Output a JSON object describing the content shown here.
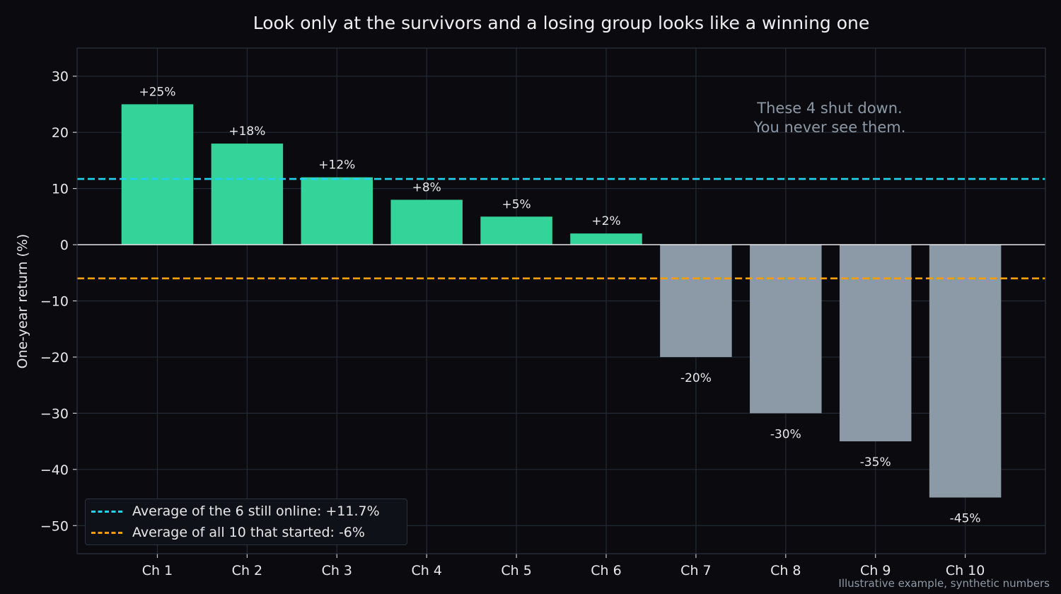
{
  "title": "Look only at the survivors and a losing group looks like a winning one",
  "footnote": "Illustrative example, synthetic numbers",
  "annotation": {
    "line1": "These 4 shut down.",
    "line2": "You never see them."
  },
  "legend": {
    "survivors_label": "Average of the 6 still online: +11.7%",
    "all_label": "Average of all 10 that started: -6%"
  },
  "colors": {
    "background": "#0b0b0f",
    "survivor_bar": "#34d399",
    "closed_bar": "#8c99a6",
    "survivor_avg_line": "#22d3ee",
    "all_avg_line": "#f59e0b",
    "grid": "#222a35"
  },
  "chart_data": {
    "type": "bar",
    "title": "Look only at the survivors and a losing group looks like a winning one",
    "xlabel": "",
    "ylabel": "One-year return (%)",
    "ylim": [
      -55,
      35
    ],
    "yticks": [
      30,
      20,
      10,
      0,
      -10,
      -20,
      -30,
      -40,
      -50
    ],
    "ytick_labels": [
      "30",
      "20",
      "10",
      "0",
      "−10",
      "−20",
      "−30",
      "−40",
      "−50"
    ],
    "grid": true,
    "legend_position": "bottom-left",
    "categories": [
      "Ch 1",
      "Ch 2",
      "Ch 3",
      "Ch 4",
      "Ch 5",
      "Ch 6",
      "Ch 7",
      "Ch 8",
      "Ch 9",
      "Ch 10"
    ],
    "values": [
      25,
      18,
      12,
      8,
      5,
      2,
      -20,
      -30,
      -35,
      -45
    ],
    "value_labels": [
      "+25%",
      "+18%",
      "+12%",
      "+8%",
      "+5%",
      "+2%",
      "-20%",
      "-30%",
      "-35%",
      "-45%"
    ],
    "survived": [
      true,
      true,
      true,
      true,
      true,
      true,
      false,
      false,
      false,
      false
    ],
    "reference_lines": [
      {
        "name": "Average of the 6 still online: +11.7%",
        "value": 11.7,
        "color": "#22d3ee"
      },
      {
        "name": "Average of all 10 that started: -6%",
        "value": -6,
        "color": "#f59e0b"
      }
    ]
  }
}
